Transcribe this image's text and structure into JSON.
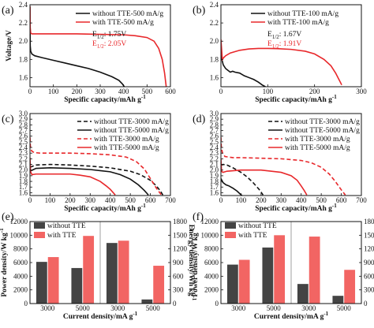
{
  "chart_data": [
    {
      "panel": "(a)",
      "type": "line",
      "xlabel": "Specific capacity/mAh g⁻¹",
      "ylabel": "Voltage/V",
      "xlim": [
        0,
        600
      ],
      "ylim": [
        1.5,
        2.4
      ],
      "xticks": [
        0,
        100,
        200,
        300,
        400,
        500,
        600
      ],
      "yticks": [
        1.6,
        1.8,
        2.0,
        2.2,
        2.4
      ],
      "legend_position": "top-right",
      "annotations": [
        {
          "label": "E",
          "sub": "1/2",
          "value": ": 1.75V",
          "color": "#111111"
        },
        {
          "label": "E",
          "sub": "1/2",
          "value": ": 2.05V",
          "color": "#e8282b"
        }
      ],
      "series": [
        {
          "name": "without TTE-500 mA/g",
          "color": "#111111",
          "dash": "solid",
          "x": [
            0,
            1,
            3,
            8,
            20,
            50,
            100,
            150,
            200,
            250,
            300,
            350,
            380,
            395,
            403,
            408
          ],
          "y": [
            2.38,
            1.95,
            1.89,
            1.86,
            1.84,
            1.82,
            1.79,
            1.76,
            1.73,
            1.7,
            1.66,
            1.61,
            1.57,
            1.53,
            1.5,
            1.46
          ]
        },
        {
          "name": "with TTE-500 mA/g",
          "color": "#e8282b",
          "dash": "solid",
          "x": [
            0,
            1,
            3,
            8,
            20,
            50,
            100,
            200,
            300,
            400,
            450,
            500,
            530,
            550,
            565,
            575,
            582
          ],
          "y": [
            2.38,
            2.15,
            2.09,
            2.08,
            2.08,
            2.08,
            2.08,
            2.08,
            2.075,
            2.07,
            2.06,
            2.04,
            2.0,
            1.92,
            1.8,
            1.65,
            1.5
          ]
        }
      ]
    },
    {
      "panel": "(b)",
      "type": "line",
      "xlabel": "Specific capacity/mAh g⁻¹",
      "ylabel": "",
      "xlim": [
        0,
        300
      ],
      "ylim": [
        1.5,
        2.4
      ],
      "xticks": [
        0,
        100,
        200,
        300
      ],
      "yticks": [
        1.6,
        1.8,
        2.0,
        2.2,
        2.4
      ],
      "legend_position": "top-right",
      "annotations": [
        {
          "label": "E",
          "sub": "1/2",
          "value": ": 1.67V",
          "color": "#111111"
        },
        {
          "label": "E",
          "sub": "1/2",
          "value": ": 1.91V",
          "color": "#e8282b"
        }
      ],
      "series": [
        {
          "name": "without TTE-100 mA/g",
          "color": "#111111",
          "dash": "solid",
          "x": [
            0,
            2,
            5,
            10,
            15,
            20,
            25,
            30,
            40,
            50,
            60,
            70,
            80,
            88,
            95
          ],
          "y": [
            1.85,
            1.8,
            1.74,
            1.7,
            1.68,
            1.66,
            1.67,
            1.66,
            1.65,
            1.62,
            1.6,
            1.58,
            1.55,
            1.52,
            1.5
          ]
        },
        {
          "name": "with TTE-100 mA/g",
          "color": "#e8282b",
          "dash": "solid",
          "x": [
            0,
            3,
            6,
            10,
            20,
            40,
            60,
            80,
            100,
            120,
            150,
            180,
            200,
            220,
            235,
            245,
            252,
            258
          ],
          "y": [
            2.02,
            1.8,
            1.82,
            1.84,
            1.87,
            1.9,
            1.915,
            1.92,
            1.92,
            1.918,
            1.91,
            1.89,
            1.86,
            1.8,
            1.73,
            1.65,
            1.58,
            1.52
          ]
        }
      ]
    },
    {
      "panel": "(c)",
      "type": "line",
      "xlabel": "Specific capacity/mAh g⁻¹",
      "ylabel": "",
      "xlim": [
        0,
        700
      ],
      "ylim": [
        1.55,
        3.0
      ],
      "xticks": [
        0,
        100,
        200,
        300,
        400,
        500,
        600,
        700
      ],
      "yticks": [
        1.6,
        1.7,
        1.8,
        1.9,
        2.0,
        2.1,
        2.2,
        2.3,
        2.4,
        2.5,
        2.6,
        2.7,
        2.8,
        2.9,
        3.0
      ],
      "legend_position": "top-right",
      "series": [
        {
          "name": "without TTE-3000 mA/g",
          "color": "#111111",
          "dash": "dashed",
          "x": [
            0,
            30,
            100,
            200,
            300,
            400,
            500,
            550,
            600,
            630,
            650,
            662
          ],
          "y": [
            2.05,
            2.09,
            2.1,
            2.09,
            2.07,
            2.04,
            1.98,
            1.92,
            1.82,
            1.72,
            1.63,
            1.56
          ]
        },
        {
          "name": "without TTE-5000 mA/g",
          "color": "#111111",
          "dash": "solid",
          "x": [
            0,
            30,
            100,
            200,
            300,
            400,
            450,
            500,
            540,
            570,
            590
          ],
          "y": [
            1.98,
            2.03,
            2.04,
            2.03,
            2.01,
            1.97,
            1.92,
            1.84,
            1.74,
            1.64,
            1.56
          ]
        },
        {
          "name": "with TTE-3000 mA/g",
          "color": "#e8282b",
          "dash": "dashed",
          "x": [
            0,
            2,
            8,
            20,
            50,
            100,
            200,
            300,
            400,
            480,
            530,
            570,
            600,
            630,
            655
          ],
          "y": [
            2.58,
            2.42,
            2.34,
            2.31,
            2.3,
            2.3,
            2.3,
            2.29,
            2.27,
            2.23,
            2.15,
            2.02,
            1.85,
            1.68,
            1.56
          ]
        },
        {
          "name": "with TTE-5000 mA/g",
          "color": "#e8282b",
          "dash": "solid",
          "x": [
            0,
            3,
            10,
            30,
            100,
            200,
            250,
            300,
            350,
            380,
            400,
            415,
            425
          ],
          "y": [
            2.22,
            1.97,
            1.92,
            1.93,
            1.93,
            1.93,
            1.91,
            1.88,
            1.8,
            1.72,
            1.66,
            1.6,
            1.56
          ]
        }
      ]
    },
    {
      "panel": "(d)",
      "type": "line",
      "xlabel": "Specific capacity/mAh g⁻¹",
      "ylabel": "",
      "xlim": [
        0,
        700
      ],
      "ylim": [
        1.55,
        3.0
      ],
      "xticks": [
        0,
        100,
        200,
        300,
        400,
        500,
        600,
        700
      ],
      "yticks": [
        1.6,
        1.7,
        1.8,
        1.9,
        2.0,
        2.1,
        2.2,
        2.3,
        2.4,
        2.5,
        2.6,
        2.7,
        2.8,
        2.9,
        3.0
      ],
      "legend_position": "top-right",
      "series": [
        {
          "name": "without TTE-3000 mA/g",
          "color": "#111111",
          "dash": "dashed",
          "x": [
            0,
            10,
            30,
            60,
            100,
            130,
            160,
            190,
            210
          ],
          "y": [
            2.08,
            2.1,
            2.09,
            2.04,
            1.96,
            1.88,
            1.78,
            1.66,
            1.56
          ]
        },
        {
          "name": "without TTE-5000 mA/g",
          "color": "#111111",
          "dash": "solid",
          "x": [
            0,
            10,
            25,
            40,
            60,
            80,
            95,
            105
          ],
          "y": [
            1.85,
            1.78,
            1.74,
            1.72,
            1.68,
            1.63,
            1.58,
            1.55
          ]
        },
        {
          "name": "with TTE-3000 mA/g",
          "color": "#e8282b",
          "dash": "dashed",
          "x": [
            0,
            2,
            8,
            20,
            60,
            100,
            200,
            300,
            400,
            450,
            500,
            540,
            570,
            600,
            620
          ],
          "y": [
            2.58,
            2.4,
            2.3,
            2.24,
            2.22,
            2.22,
            2.21,
            2.2,
            2.17,
            2.13,
            2.05,
            1.93,
            1.8,
            1.65,
            1.56
          ]
        },
        {
          "name": "with TTE-5000 mA/g",
          "color": "#e8282b",
          "dash": "solid",
          "x": [
            0,
            3,
            10,
            30,
            100,
            200,
            300,
            350,
            380,
            400,
            415,
            428
          ],
          "y": [
            2.2,
            1.98,
            1.96,
            1.98,
            2.0,
            2.0,
            1.96,
            1.9,
            1.82,
            1.72,
            1.64,
            1.56
          ]
        }
      ]
    },
    {
      "panel": "(e)",
      "type": "bar",
      "xlabel": "Current density/mA g⁻¹",
      "ylabel": "Power density/W kg⁻¹",
      "y2label": "Energy density/Wh kg⁻¹",
      "categories": [
        "3000",
        "5000",
        "3000",
        "5000"
      ],
      "left_axis_groups": [
        0,
        1
      ],
      "right_axis_groups": [
        2,
        3
      ],
      "ylim": [
        0,
        12000
      ],
      "y2lim": [
        0,
        1800
      ],
      "yticks": [
        0,
        2000,
        4000,
        6000,
        8000,
        10000,
        12000
      ],
      "y2ticks": [
        0,
        300,
        600,
        900,
        1200,
        1500,
        1800
      ],
      "legend_position": "top-left",
      "series": [
        {
          "name": "without TTE",
          "color": "#444444",
          "values": [
            6100,
            5200,
            1330,
            90
          ]
        },
        {
          "name": "with TTE",
          "color": "#f26563",
          "values": [
            6800,
            9900,
            1380,
            830
          ]
        }
      ]
    },
    {
      "panel": "(f)",
      "type": "bar",
      "xlabel": "Current density/mA g⁻¹",
      "ylabel": "Power density/W kg⁻¹",
      "y2label": "Energy density/Wh kg⁻¹",
      "categories": [
        "3000",
        "5000",
        "3000",
        "5000"
      ],
      "left_axis_groups": [
        0,
        1
      ],
      "right_axis_groups": [
        2,
        3
      ],
      "ylim": [
        0,
        12000
      ],
      "y2lim": [
        0,
        1800
      ],
      "yticks": [
        0,
        2000,
        4000,
        6000,
        8000,
        10000,
        12000
      ],
      "y2ticks": [
        0,
        300,
        600,
        900,
        1200,
        1500,
        1800
      ],
      "legend_position": "top-left",
      "series": [
        {
          "name": "without TTE",
          "color": "#444444",
          "values": [
            5700,
            8200,
            430,
            170
          ]
        },
        {
          "name": "with TTE",
          "color": "#f26563",
          "values": [
            6400,
            10000,
            1470,
            740
          ]
        }
      ]
    }
  ]
}
